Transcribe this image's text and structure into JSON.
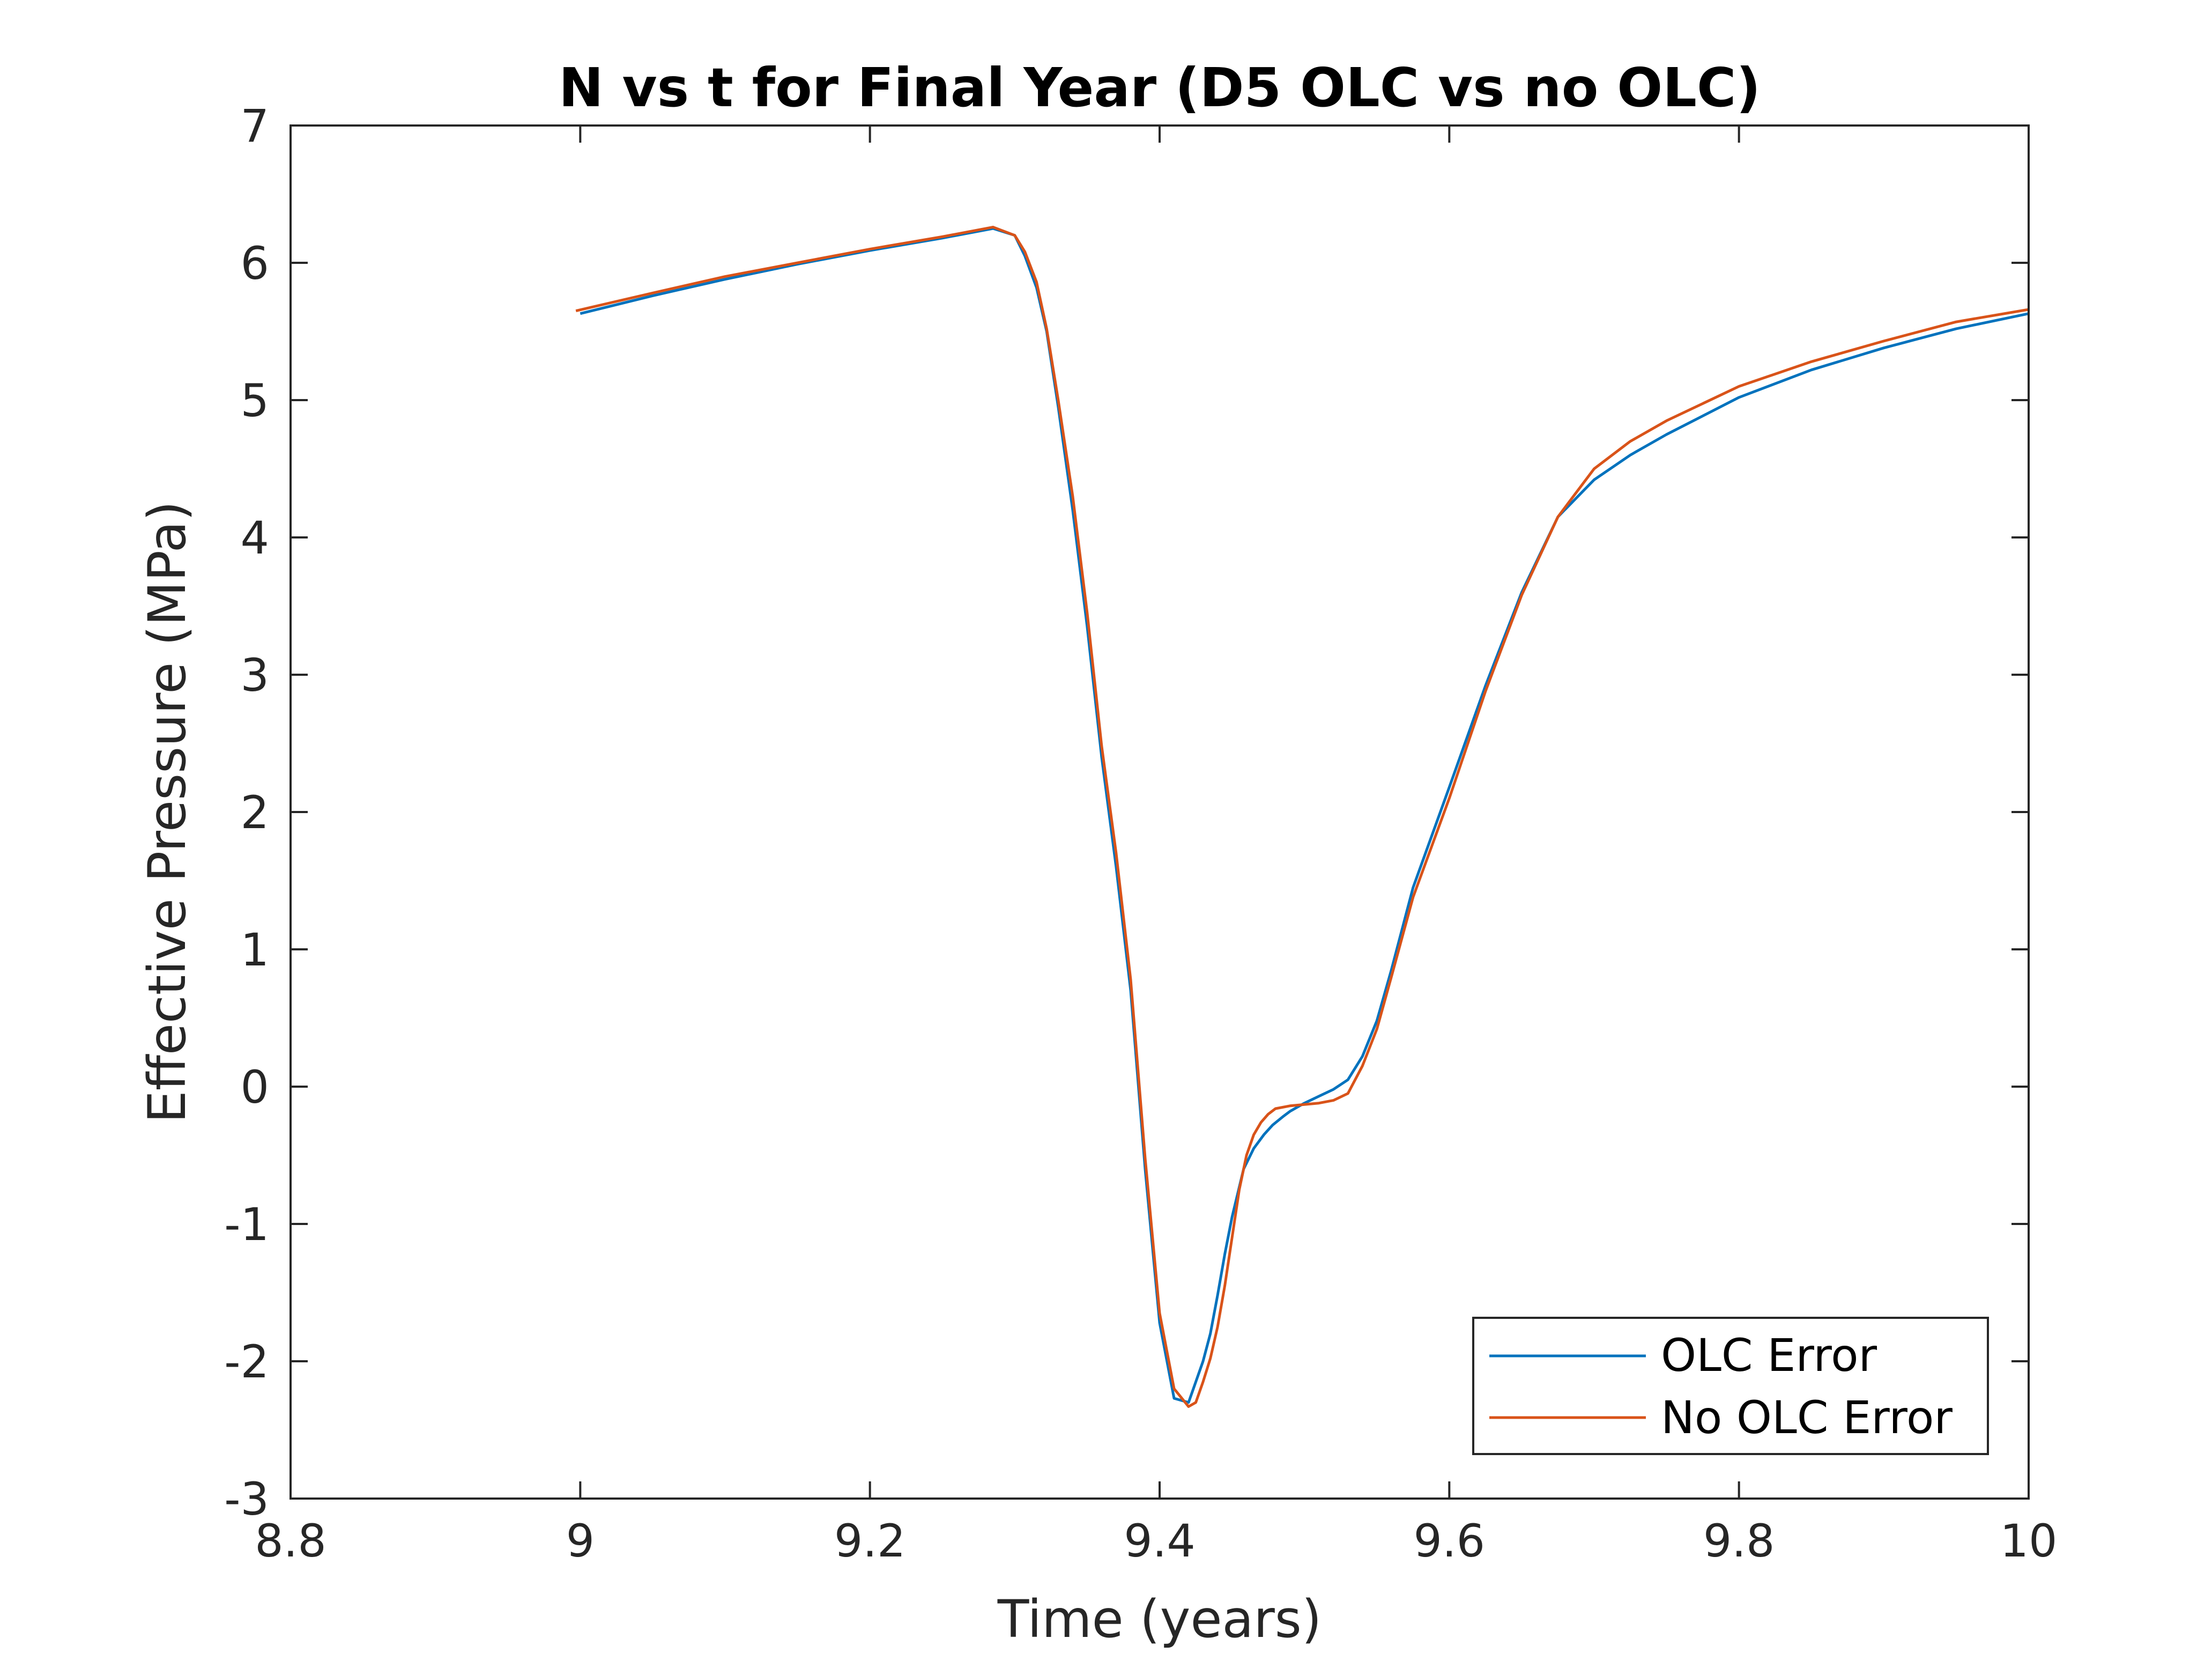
{
  "chart_data": {
    "type": "line",
    "title": "N vs t for Final Year (D5 OLC vs no OLC)",
    "xlabel": "Time (years)",
    "ylabel": "Effective Pressure (MPa)",
    "xlim": [
      8.8,
      10
    ],
    "ylim": [
      -3,
      7
    ],
    "xticks": [
      8.8,
      9,
      9.2,
      9.4,
      9.6,
      9.8,
      10
    ],
    "yticks": [
      -3,
      -2,
      -1,
      0,
      1,
      2,
      3,
      4,
      5,
      6,
      7
    ],
    "xtick_labels": [
      "8.8",
      "9",
      "9.2",
      "9.4",
      "9.6",
      "9.8",
      "10"
    ],
    "ytick_labels": [
      "-3",
      "-2",
      "-1",
      "0",
      "1",
      "2",
      "3",
      "4",
      "5",
      "6",
      "7"
    ],
    "grid": false,
    "legend_position": "bottom-right",
    "series": [
      {
        "name": "OLC Error",
        "color": "#0072BD",
        "x": [
          9.0,
          9.05,
          9.1,
          9.15,
          9.2,
          9.25,
          9.285,
          9.3,
          9.307,
          9.315,
          9.322,
          9.33,
          9.34,
          9.35,
          9.36,
          9.37,
          9.38,
          9.39,
          9.4,
          9.41,
          9.42,
          9.425,
          9.43,
          9.435,
          9.44,
          9.445,
          9.45,
          9.458,
          9.465,
          9.472,
          9.478,
          9.485,
          9.49,
          9.5,
          9.51,
          9.52,
          9.53,
          9.54,
          9.55,
          9.56,
          9.575,
          9.6,
          9.625,
          9.65,
          9.675,
          9.7,
          9.725,
          9.75,
          9.8,
          9.85,
          9.9,
          9.95,
          10.0
        ],
        "y": [
          5.63,
          5.76,
          5.88,
          5.99,
          6.09,
          6.18,
          6.25,
          6.2,
          6.05,
          5.82,
          5.5,
          4.95,
          4.2,
          3.35,
          2.4,
          1.6,
          0.7,
          -0.6,
          -1.72,
          -2.27,
          -2.3,
          -2.15,
          -2.0,
          -1.8,
          -1.52,
          -1.22,
          -0.95,
          -0.6,
          -0.45,
          -0.35,
          -0.28,
          -0.22,
          -0.18,
          -0.12,
          -0.07,
          -0.02,
          0.05,
          0.22,
          0.48,
          0.85,
          1.45,
          2.18,
          2.92,
          3.6,
          4.15,
          4.42,
          4.6,
          4.75,
          5.02,
          5.22,
          5.38,
          5.52,
          5.63
        ]
      },
      {
        "name": "No OLC Error",
        "color": "#D95319",
        "x": [
          8.997,
          9.05,
          9.1,
          9.15,
          9.2,
          9.25,
          9.285,
          9.3,
          9.307,
          9.315,
          9.322,
          9.33,
          9.34,
          9.35,
          9.36,
          9.37,
          9.38,
          9.39,
          9.4,
          9.41,
          9.42,
          9.425,
          9.43,
          9.435,
          9.44,
          9.445,
          9.45,
          9.455,
          9.46,
          9.465,
          9.47,
          9.475,
          9.48,
          9.49,
          9.5,
          9.51,
          9.52,
          9.53,
          9.54,
          9.55,
          9.56,
          9.575,
          9.6,
          9.625,
          9.65,
          9.675,
          9.7,
          9.725,
          9.75,
          9.8,
          9.85,
          9.9,
          9.95,
          10.0
        ],
        "y": [
          5.65,
          5.78,
          5.9,
          6.0,
          6.1,
          6.19,
          6.26,
          6.2,
          6.08,
          5.86,
          5.52,
          5.0,
          4.3,
          3.45,
          2.48,
          1.7,
          0.78,
          -0.52,
          -1.65,
          -2.2,
          -2.33,
          -2.3,
          -2.15,
          -1.98,
          -1.75,
          -1.45,
          -1.1,
          -0.75,
          -0.5,
          -0.35,
          -0.26,
          -0.2,
          -0.16,
          -0.14,
          -0.13,
          -0.12,
          -0.1,
          -0.05,
          0.15,
          0.42,
          0.8,
          1.38,
          2.1,
          2.88,
          3.58,
          4.15,
          4.5,
          4.7,
          4.85,
          5.1,
          5.28,
          5.43,
          5.57,
          5.66
        ]
      }
    ]
  }
}
